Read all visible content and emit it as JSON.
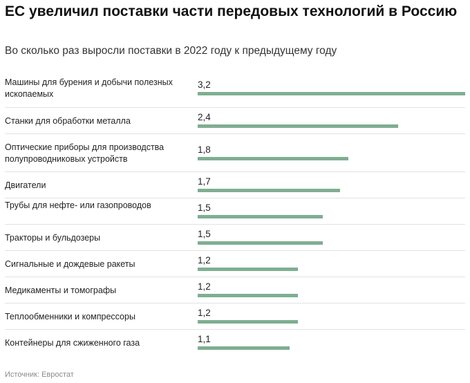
{
  "header": {
    "title": "ЕС увеличил поставки части передовых технологий в Россию",
    "subtitle": "Во сколько раз выросли поставки в 2022 году к предыдущему году"
  },
  "footer": {
    "source": "Источник: Евростат"
  },
  "colors": {
    "bar": "#7fae91",
    "divider": "#e2e2e2"
  },
  "chart_data": {
    "type": "bar",
    "orientation": "horizontal",
    "categories": [
      "Машины для бурения и добычи полезных ископаемых",
      "Станки для обработки металла",
      "Оптические приборы для производства полупроводниковых устройств",
      "Двигатели",
      "Трубы для нефте- или газопроводов",
      "Тракторы и бульдозеры",
      "Сигнальные и дождевые ракеты",
      "Медикаменты и томографы",
      "Теплообменники и компрессоры",
      "Контейнеры для сжиженного газа"
    ],
    "values": [
      3.2,
      2.4,
      1.8,
      1.7,
      1.5,
      1.5,
      1.2,
      1.2,
      1.2,
      1.1
    ],
    "value_labels": [
      "3,2",
      "2,4",
      "1,8",
      "1,7",
      "1,5",
      "1,5",
      "1,2",
      "1,2",
      "1,2",
      "1,1"
    ],
    "xlim": [
      0,
      3.2
    ],
    "grid": false,
    "legend": "none"
  }
}
